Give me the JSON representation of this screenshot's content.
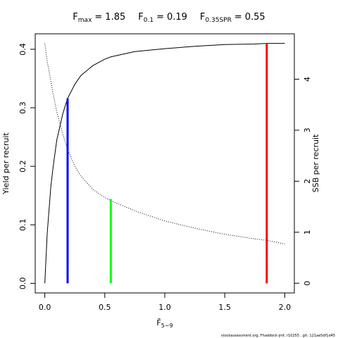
{
  "chart_data": {
    "type": "line",
    "reference_points": [
      {
        "symbol": "F",
        "subscript": "max",
        "sign": "=",
        "value": 1.85,
        "height": 0.41,
        "color": "#ff0000"
      },
      {
        "symbol": "F",
        "subscript": "0.1",
        "sign": "=",
        "value": 0.19,
        "height": 0.316,
        "color": "#0000ff"
      },
      {
        "symbol": "F",
        "subscript": "0.35SPR",
        "sign": "=",
        "value": 0.55,
        "height": 0.144,
        "color": "#00ff00"
      }
    ],
    "xlabel": {
      "symbol": "F̄",
      "subscript": "5−9"
    },
    "ylabel": "Yield per recruit",
    "y2label": "SSB per recruit",
    "footer": "stockassessment.org, Fhaddock-jmf, r10255 , git: 121ae5df1d45",
    "x": [
      0,
      0.02,
      0.05,
      0.07,
      0.1,
      0.15,
      0.19,
      0.25,
      0.3,
      0.4,
      0.5,
      0.55,
      0.75,
      1.0,
      1.25,
      1.5,
      1.75,
      1.85,
      2.0
    ],
    "series": [
      {
        "name": "Yield per recruit",
        "color": "#000000",
        "dash": "solid",
        "values": [
          0,
          0.085,
          0.165,
          0.2,
          0.245,
          0.29,
          0.316,
          0.34,
          0.355,
          0.372,
          0.383,
          0.387,
          0.396,
          0.401,
          0.405,
          0.408,
          0.409,
          0.41,
          0.41
        ]
      },
      {
        "name": "SSB per recruit",
        "color": "#000000",
        "dash": "dotted",
        "axis": "y2",
        "values": [
          4.7,
          4.35,
          3.97,
          3.7,
          3.36,
          2.92,
          2.62,
          2.3,
          2.1,
          1.84,
          1.68,
          1.62,
          1.42,
          1.22,
          1.08,
          0.96,
          0.87,
          0.84,
          0.77
        ]
      }
    ],
    "xlim": [
      -0.08,
      2.08
    ],
    "ylim": [
      -0.0164,
      0.4264
    ],
    "y2lim": [
      -0.19,
      4.89
    ],
    "xticks": [
      {
        "value": 0,
        "label": "0.0"
      },
      {
        "value": 0.5,
        "label": "0.5"
      },
      {
        "value": 1,
        "label": "1.0"
      },
      {
        "value": 1.5,
        "label": "1.5"
      },
      {
        "value": 2,
        "label": "2.0"
      }
    ],
    "yticks": [
      {
        "value": 0,
        "label": "0.0"
      },
      0.1,
      0.2,
      0.3,
      0.4
    ],
    "y2ticks": [
      0,
      1,
      2,
      3,
      4
    ]
  }
}
